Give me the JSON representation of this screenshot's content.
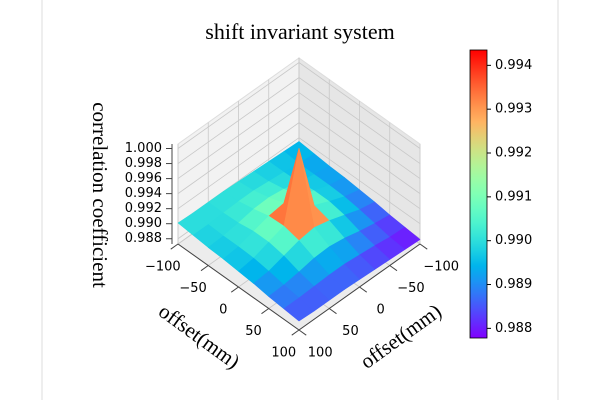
{
  "chart_data": {
    "type": "surface",
    "title": "shift invariant system",
    "xlabel": "offset(mm)",
    "ylabel": "offset(mm)",
    "zlabel": "correlation coefficient",
    "colormap": "rainbow",
    "x": [
      -100,
      -75,
      -50,
      -25,
      0,
      25,
      50,
      75,
      100
    ],
    "y": [
      -100,
      -75,
      -50,
      -25,
      0,
      25,
      50,
      75,
      100
    ],
    "z": [
      [
        0.9895,
        0.9896,
        0.9897,
        0.9898,
        0.9899,
        0.99,
        0.99,
        0.99,
        0.9901
      ],
      [
        0.9893,
        0.9894,
        0.9897,
        0.9899,
        0.9901,
        0.9901,
        0.99,
        0.9899,
        0.9899
      ],
      [
        0.9891,
        0.9894,
        0.9898,
        0.9903,
        0.9906,
        0.9905,
        0.9901,
        0.9898,
        0.9897
      ],
      [
        0.989,
        0.9894,
        0.9901,
        0.9908,
        0.9913,
        0.991,
        0.9904,
        0.9898,
        0.9896
      ],
      [
        0.9888,
        0.9893,
        0.9901,
        0.991,
        1.0,
        0.9911,
        0.9904,
        0.9897,
        0.9894
      ],
      [
        0.9886,
        0.989,
        0.9897,
        0.9904,
        0.9909,
        0.9906,
        0.99,
        0.9894,
        0.9892
      ],
      [
        0.9883,
        0.9886,
        0.989,
        0.9895,
        0.9898,
        0.9897,
        0.9893,
        0.989,
        0.9889
      ],
      [
        0.9881,
        0.9882,
        0.9885,
        0.9887,
        0.9889,
        0.9889,
        0.9888,
        0.9887,
        0.9887
      ],
      [
        0.9879,
        0.988,
        0.9881,
        0.9882,
        0.9883,
        0.9884,
        0.9884,
        0.9884,
        0.9885
      ]
    ],
    "xlim": [
      -100,
      100
    ],
    "ylim": [
      -100,
      100
    ],
    "zlim": [
      0.9873,
      1.0006
    ],
    "xticks": [
      {
        "value": -100,
        "label": "−100"
      },
      {
        "value": -50,
        "label": "−50"
      },
      0,
      50,
      100
    ],
    "yticks": [
      {
        "value": -100,
        "label": "−100"
      },
      {
        "value": -50,
        "label": "−50"
      },
      0,
      50,
      100
    ],
    "zticks": [
      0.988,
      {
        "value": 0.99,
        "label": "0.990"
      },
      0.992,
      0.994,
      0.996,
      0.998,
      {
        "value": 1,
        "label": "1.000"
      }
    ],
    "clim": [
      0.98778,
      0.99435
    ],
    "cticks": [
      0.988,
      0.989,
      {
        "value": 0.99,
        "label": "0.990"
      },
      0.991,
      0.992,
      0.993,
      0.994
    ],
    "grid": true
  }
}
